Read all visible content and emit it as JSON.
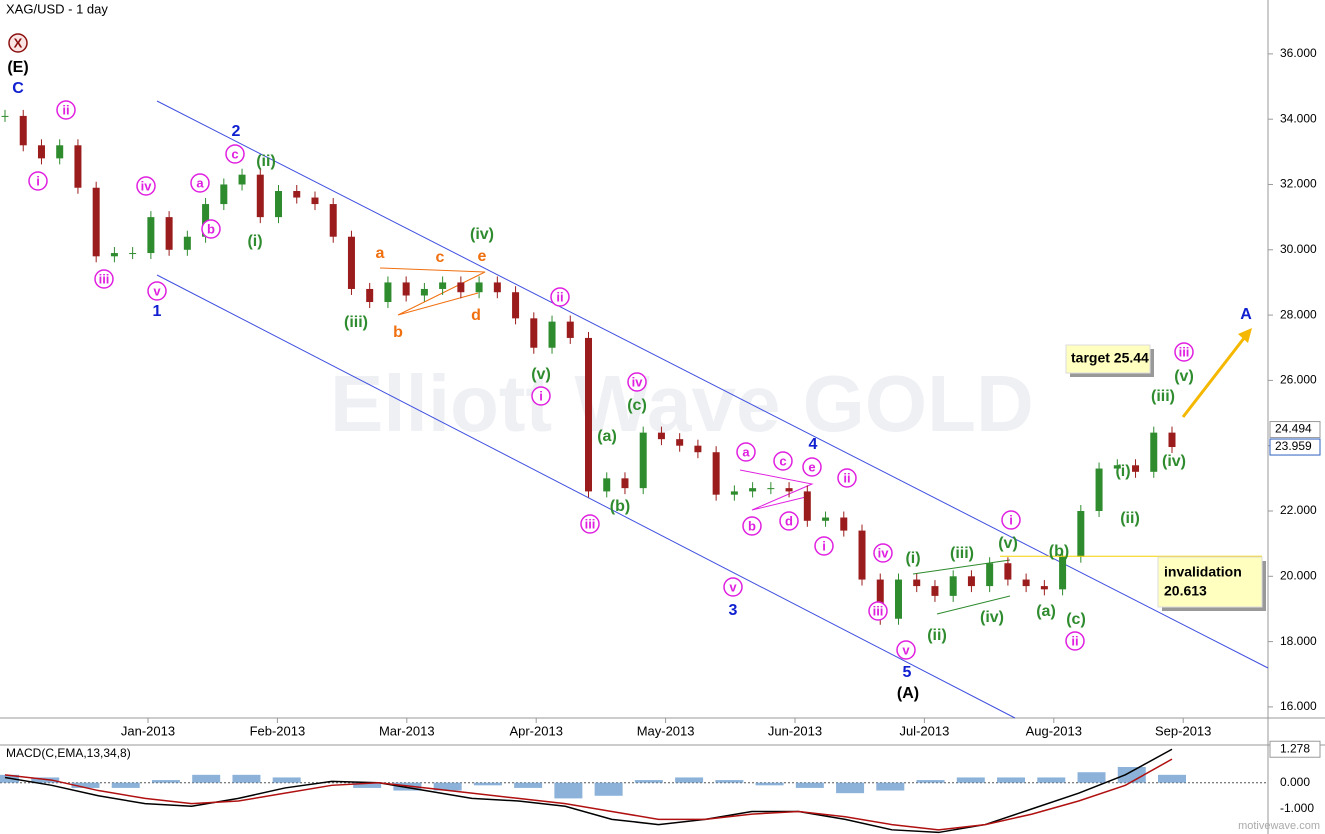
{
  "chart_data": [
    {
      "type": "candlestick",
      "title": "XAG/USD - 1 day",
      "categories": [
        "Jan-2013",
        "Feb-2013",
        "Mar-2013",
        "Apr-2013",
        "May-2013",
        "Jun-2013",
        "Jul-2013",
        "Aug-2013",
        "Sep-2013"
      ],
      "closes": [
        34.1,
        33.2,
        32.8,
        33.2,
        31.9,
        29.8,
        29.9,
        29.9,
        31.0,
        30.0,
        30.4,
        31.4,
        32.0,
        32.3,
        31.0,
        31.8,
        31.6,
        31.4,
        30.4,
        28.8,
        28.4,
        29.0,
        28.6,
        28.8,
        29.0,
        28.7,
        29.0,
        28.7,
        27.9,
        27.0,
        27.8,
        27.3,
        22.6,
        23.0,
        22.7,
        24.4,
        24.2,
        24.0,
        23.8,
        22.5,
        22.6,
        22.7,
        22.7,
        22.6,
        21.7,
        21.8,
        21.4,
        19.9,
        18.7,
        19.9,
        19.7,
        19.4,
        20.0,
        19.7,
        20.4,
        19.9,
        19.7,
        19.6,
        20.6,
        22.0,
        23.3,
        23.4,
        23.2,
        24.4,
        23.959
      ],
      "up_color": "#2e8b2e",
      "down_color": "#9b1c1c",
      "ylim": [
        15.66,
        37.65
      ],
      "yticks": [
        {
          "value": 16,
          "label": "16.000"
        },
        {
          "value": 18,
          "label": "18.000"
        },
        {
          "value": 20,
          "label": "20.000"
        },
        {
          "value": 22,
          "label": "22.000"
        },
        {
          "value": 24,
          "label": "24.000"
        },
        {
          "value": 26,
          "label": "26.000"
        },
        {
          "value": 28,
          "label": "28.000"
        },
        {
          "value": 30,
          "label": "30.000"
        },
        {
          "value": 32,
          "label": "32.000"
        },
        {
          "value": 34,
          "label": "34.000"
        },
        {
          "value": 36,
          "label": "36.000"
        }
      ],
      "price_markers": [
        24.494,
        23.959
      ],
      "target": "target 25.44",
      "invalidation": {
        "label": "invalidation",
        "value": 20.613
      },
      "watermark": "Elliott Wave GOLD",
      "annotations": [
        {
          "text": "X",
          "color": "#8b1010",
          "circled": true
        },
        {
          "text": "(E)",
          "color": "#000"
        },
        {
          "text": "C",
          "color": "#1020d0"
        },
        {
          "text": "i",
          "color": "#e020e0",
          "circled": true
        },
        {
          "text": "ii",
          "color": "#e020e0",
          "circled": true
        },
        {
          "text": "iii",
          "color": "#e020e0",
          "circled": true
        },
        {
          "text": "iv",
          "color": "#e020e0",
          "circled": true
        },
        {
          "text": "v",
          "color": "#e020e0",
          "circled": true
        },
        {
          "text": "1",
          "color": "#1020d0"
        },
        {
          "text": "a",
          "color": "#e020e0",
          "circled": true
        },
        {
          "text": "b",
          "color": "#e020e0",
          "circled": true
        },
        {
          "text": "c",
          "color": "#e020e0",
          "circled": true
        },
        {
          "text": "2",
          "color": "#1020d0"
        },
        {
          "text": "(ii)",
          "color": "#2e8b2e"
        },
        {
          "text": "(i)",
          "color": "#2e8b2e"
        },
        {
          "text": "(iii)",
          "color": "#2e8b2e"
        },
        {
          "text": "a",
          "color": "#f07010"
        },
        {
          "text": "b",
          "color": "#f07010"
        },
        {
          "text": "c",
          "color": "#f07010"
        },
        {
          "text": "e",
          "color": "#f07010"
        },
        {
          "text": "d",
          "color": "#f07010"
        },
        {
          "text": "(iv)",
          "color": "#2e8b2e"
        },
        {
          "text": "ii",
          "color": "#e020e0",
          "circled": true
        },
        {
          "text": "(v)",
          "color": "#2e8b2e"
        },
        {
          "text": "i",
          "color": "#e020e0",
          "circled": true
        },
        {
          "text": "iv",
          "color": "#e020e0",
          "circled": true
        },
        {
          "text": "(c)",
          "color": "#2e8b2e"
        },
        {
          "text": "(a)",
          "color": "#2e8b2e"
        },
        {
          "text": "(b)",
          "color": "#2e8b2e"
        },
        {
          "text": "iii",
          "color": "#e020e0",
          "circled": true
        },
        {
          "text": "a",
          "color": "#e020e0",
          "circled": true
        },
        {
          "text": "c",
          "color": "#e020e0",
          "circled": true
        },
        {
          "text": "e",
          "color": "#e020e0",
          "circled": true
        },
        {
          "text": "4",
          "color": "#1020d0"
        },
        {
          "text": "b",
          "color": "#e020e0",
          "circled": true
        },
        {
          "text": "d",
          "color": "#e020e0",
          "circled": true
        },
        {
          "text": "v",
          "color": "#e020e0",
          "circled": true
        },
        {
          "text": "3",
          "color": "#1020d0"
        },
        {
          "text": "ii",
          "color": "#e020e0",
          "circled": true
        },
        {
          "text": "i",
          "color": "#e020e0",
          "circled": true
        },
        {
          "text": "iv",
          "color": "#e020e0",
          "circled": true
        },
        {
          "text": "iii",
          "color": "#e020e0",
          "circled": true
        },
        {
          "text": "v",
          "color": "#e020e0",
          "circled": true
        },
        {
          "text": "5",
          "color": "#1020d0"
        },
        {
          "text": "(A)",
          "color": "#000"
        },
        {
          "text": "(i)",
          "color": "#2e8b2e"
        },
        {
          "text": "(iii)",
          "color": "#2e8b2e"
        },
        {
          "text": "(ii)",
          "color": "#2e8b2e"
        },
        {
          "text": "(iv)",
          "color": "#2e8b2e"
        },
        {
          "text": "(v)",
          "color": "#2e8b2e"
        },
        {
          "text": "i",
          "color": "#e020e0",
          "circled": true
        },
        {
          "text": "(b)",
          "color": "#2e8b2e"
        },
        {
          "text": "(a)",
          "color": "#2e8b2e"
        },
        {
          "text": "(c)",
          "color": "#2e8b2e"
        },
        {
          "text": "ii",
          "color": "#e020e0",
          "circled": true
        },
        {
          "text": "(i)",
          "color": "#2e8b2e"
        },
        {
          "text": "(ii)",
          "color": "#2e8b2e"
        },
        {
          "text": "(iv)",
          "color": "#2e8b2e"
        },
        {
          "text": "(iii)",
          "color": "#2e8b2e"
        },
        {
          "text": "(v)",
          "color": "#2e8b2e"
        },
        {
          "text": "iii",
          "color": "#e020e0",
          "circled": true
        },
        {
          "text": "A",
          "color": "#1020d0"
        }
      ],
      "source": "motivewave.com"
    },
    {
      "type": "macd",
      "title": "MACD(C,EMA,13,34,8)",
      "ylim": [
        -1.96,
        1.44
      ],
      "yticks": [
        {
          "value": 0,
          "label": "0.000"
        },
        {
          "value": -1,
          "label": "-1.000"
        }
      ],
      "last_value": 1.278,
      "histogram": [
        0.3,
        0.2,
        -0.2,
        -0.2,
        0.1,
        0.3,
        0.3,
        0.2,
        0.0,
        -0.2,
        -0.3,
        -0.3,
        -0.1,
        -0.2,
        -0.6,
        -0.5,
        0.1,
        0.2,
        0.1,
        -0.1,
        -0.2,
        -0.4,
        -0.3,
        0.1,
        0.2,
        0.2,
        0.2,
        0.4,
        0.6,
        0.3
      ],
      "histogram_color": "#6f9fcf",
      "series": [
        {
          "color": "#000",
          "values": [
            0.2,
            -0.1,
            -0.5,
            -0.8,
            -0.9,
            -0.6,
            -0.2,
            0.05,
            0.0,
            -0.3,
            -0.6,
            -0.7,
            -0.9,
            -1.4,
            -1.6,
            -1.4,
            -1.1,
            -1.1,
            -1.4,
            -1.8,
            -1.9,
            -1.6,
            -1.0,
            -0.4,
            0.3,
            1.278
          ]
        },
        {
          "color": "#b01010",
          "values": [
            0.3,
            0.1,
            -0.3,
            -0.6,
            -0.8,
            -0.7,
            -0.4,
            -0.1,
            0.0,
            -0.2,
            -0.4,
            -0.6,
            -0.8,
            -1.1,
            -1.4,
            -1.4,
            -1.2,
            -1.1,
            -1.3,
            -1.6,
            -1.8,
            -1.6,
            -1.2,
            -0.7,
            -0.1,
            0.9
          ]
        }
      ]
    }
  ]
}
